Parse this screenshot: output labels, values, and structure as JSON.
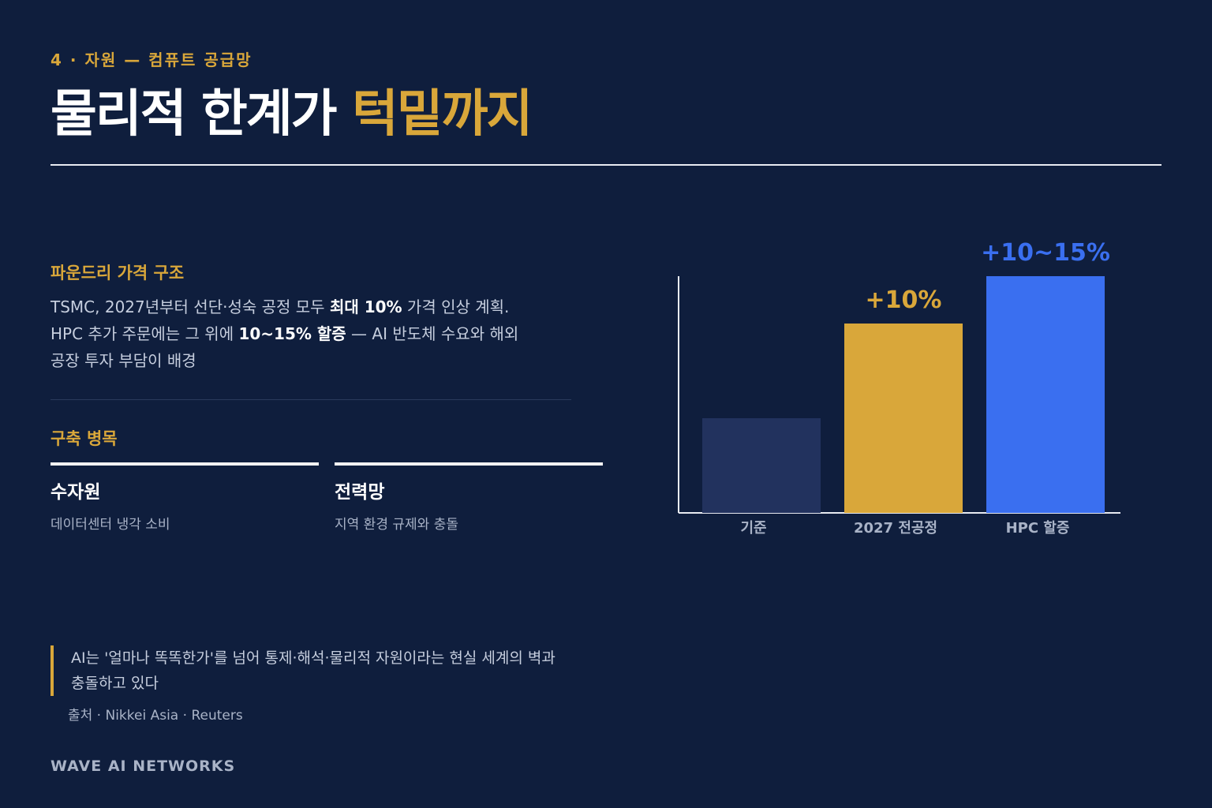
{
  "header": {
    "eyebrow": "4 · 자원 — 컴퓨트 공급망",
    "title_main": "물리적 한계가",
    "title_highlight": "턱밑까지"
  },
  "pricing": {
    "heading": "파운드리 가격 구조",
    "line1_pre": "TSMC, 2027년부터 선단·성숙 공정 모두 ",
    "line1_bold": "최대 10%",
    "line1_post": " 가격 인상 계획.",
    "line2_pre": "HPC 추가 주문에는 그 위에 ",
    "line2_bold": "10~15% 할증",
    "line2_post": " — AI 반도체 수요와 해외",
    "line3": "공장 투자 부담이 배경"
  },
  "bottleneck": {
    "heading": "구축 병목",
    "cards": [
      {
        "title": "수자원",
        "desc": "데이터센터 냉각 소비"
      },
      {
        "title": "전력망",
        "desc": "지역 환경 규제와 충돌"
      }
    ]
  },
  "quote": {
    "line1": "AI는 '얼마나 똑똑한가'를 넘어 통제·해석·물리적 자원이라는 현실 세계의 벽과",
    "line2": "충돌하고 있다",
    "source": "출처 · Nikkei Asia · Reuters"
  },
  "brand": "WAVE AI NETWORKS",
  "colors": {
    "background": "#0f1e3d",
    "accent": "#d9a73a",
    "blue": "#3a6ff0",
    "baseline_bar": "#22325e"
  },
  "chart_data": {
    "type": "bar",
    "categories": [
      "기준",
      "2027 전공정",
      "HPC 할증"
    ],
    "values": [
      0,
      10,
      15
    ],
    "value_labels": [
      "",
      "+10%",
      "+10~15%"
    ],
    "bar_colors": [
      "#22325e",
      "#d9a73a",
      "#3a6ff0"
    ],
    "label_colors": [
      "#ffffff",
      "#d9a73a",
      "#3a6ff0"
    ],
    "title": "",
    "xlabel": "",
    "ylabel": "",
    "grid": false
  }
}
